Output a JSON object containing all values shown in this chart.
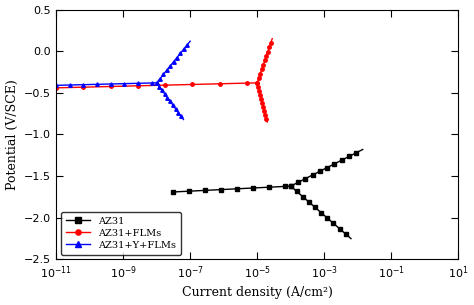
{
  "title": "",
  "xlabel": "Current density (A/cm²)",
  "ylabel": "Potential (V/SCE)",
  "xlim_log": [
    -11,
    1
  ],
  "ylim": [
    -2.5,
    0.5
  ],
  "yticks": [
    -2.5,
    -2.0,
    -1.5,
    -1.0,
    -0.5,
    0.0,
    0.5
  ],
  "legend_labels": [
    "AZ31",
    "AZ31+FLMs",
    "AZ31+Y+FLMs"
  ],
  "bg_color": "white",
  "curves": {
    "AZ31": {
      "color": "black",
      "marker": "s",
      "markersize": 2.5,
      "Ecorr": -1.62,
      "log_Icorr": -4.0,
      "anodic_end_E": -1.18,
      "anodic_end_logI": -1.85,
      "cathodic_end_E": -2.25,
      "cathodic_end_logI": -2.2,
      "flat_start_logI": -7.5,
      "flat_E": -1.62,
      "flat_slope": 0.02
    },
    "FLMs": {
      "color": "red",
      "marker": "o",
      "markersize": 2.5,
      "Ecorr": -0.38,
      "log_Icorr": -5.0,
      "anodic_end_E": 0.15,
      "anodic_end_logI": -4.55,
      "cathodic_end_E": -0.85,
      "cathodic_end_logI": -4.7,
      "flat_start_logI": -11,
      "flat_E": -0.38,
      "flat_slope": 0.01
    },
    "Y_FLMs": {
      "color": "blue",
      "marker": "^",
      "markersize": 2.5,
      "Ecorr": -0.38,
      "log_Icorr": -8.0,
      "anodic_end_E": 0.12,
      "anodic_end_logI": -7.0,
      "cathodic_end_E": -0.82,
      "cathodic_end_logI": -7.2,
      "flat_start_logI": -11,
      "flat_E": -0.38,
      "flat_slope": 0.01
    }
  }
}
